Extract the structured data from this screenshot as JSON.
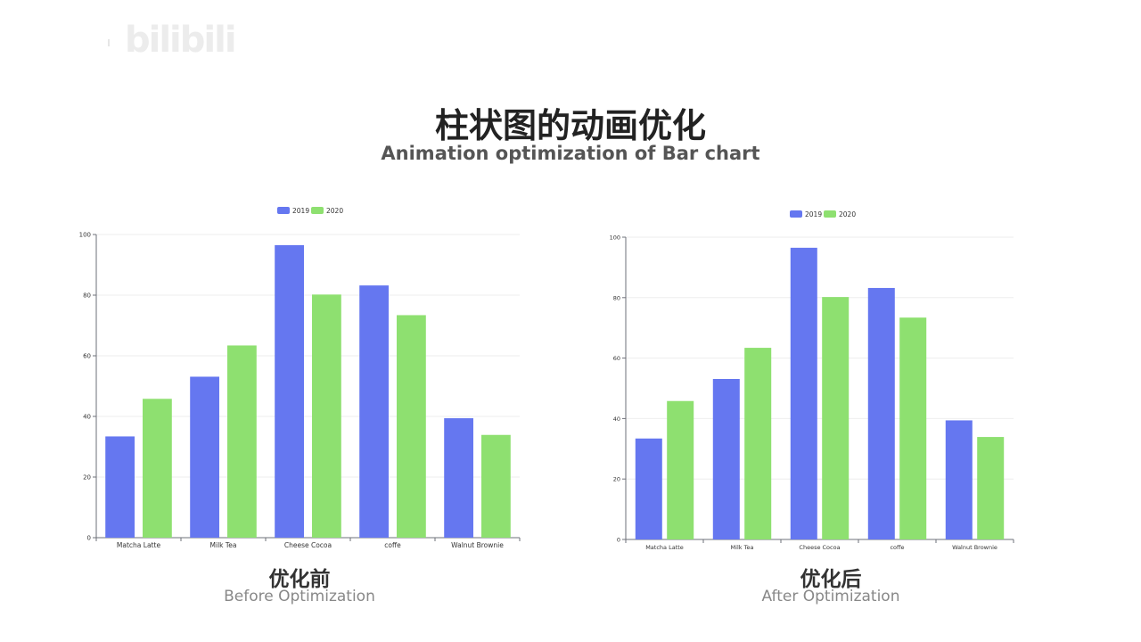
{
  "watermark": "bilibili",
  "header": {
    "title_cn": "柱状图的动画优化",
    "title_en": "Animation optimization of Bar chart"
  },
  "captions": {
    "left": {
      "cn": "优化前",
      "en": "Before Optimization"
    },
    "right": {
      "cn": "优化后",
      "en": "After Optimization"
    }
  },
  "colors": {
    "s2019": "#6577f0",
    "s2020": "#8ee070",
    "axis": "#6e7079",
    "grid": "#eeeeee"
  },
  "chart_data": [
    {
      "type": "bar",
      "title": "",
      "categories": [
        "Matcha Latte",
        "Milk Tea",
        "Cheese Cocoa",
        "coffe",
        "Walnut Brownie"
      ],
      "series": [
        {
          "name": "2019",
          "values": [
            33.4,
            53.1,
            96.5,
            83.2,
            39.4
          ]
        },
        {
          "name": "2020",
          "values": [
            45.8,
            63.4,
            80.2,
            73.4,
            33.9
          ]
        }
      ],
      "ylim": [
        0,
        100
      ],
      "yticks": [
        0,
        20,
        40,
        60,
        80,
        100
      ],
      "grid": true,
      "legend": "top-center"
    },
    {
      "type": "bar",
      "title": "",
      "categories": [
        "Matcha Latte",
        "Milk Tea",
        "Cheese Cocoa",
        "coffe",
        "Walnut Brownie"
      ],
      "series": [
        {
          "name": "2019",
          "values": [
            33.4,
            53.1,
            96.5,
            83.2,
            39.4
          ]
        },
        {
          "name": "2020",
          "values": [
            45.8,
            63.4,
            80.2,
            73.4,
            33.9
          ]
        }
      ],
      "ylim": [
        0,
        100
      ],
      "yticks": [
        0,
        20,
        40,
        60,
        80,
        100
      ],
      "grid": true,
      "legend": "top-center"
    }
  ]
}
